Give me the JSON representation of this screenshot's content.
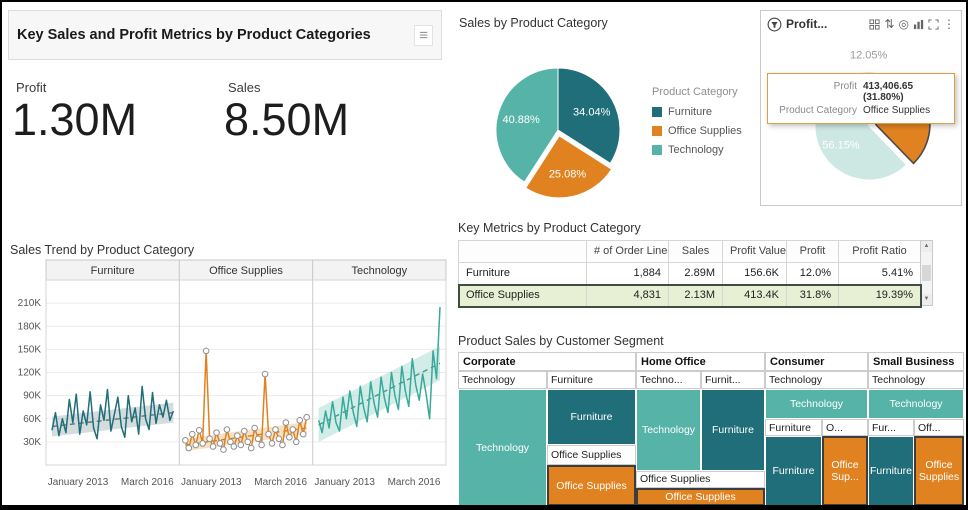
{
  "dashboard": {
    "title": "Key Sales and Profit Metrics by Product Categories"
  },
  "icons": {
    "menu_grip": "≡",
    "sort": "⇅",
    "target": "◎",
    "kebab": "⋮",
    "scroll_up": "▲",
    "scroll_down": "▼"
  },
  "kpis": {
    "profit_label": "Profit",
    "profit_value": "1.30M",
    "sales_label": "Sales",
    "sales_value": "8.50M"
  },
  "colors": {
    "furniture": "#1f6e79",
    "office_supplies": "#e0821f",
    "technology": "#56b3a7",
    "highlight_row_bg": "#e7f0d4",
    "highlight_border": "#3f4e43"
  },
  "sales_pie": {
    "title": "Sales by Product Category",
    "legend_title": "Product Category",
    "legend": [
      {
        "label": "Furniture",
        "color": "#1f6e79"
      },
      {
        "label": "Office Supplies",
        "color": "#e0821f"
      },
      {
        "label": "Technology",
        "color": "#56b3a7"
      }
    ],
    "start_deg": 0,
    "slices": [
      {
        "label": "Furniture",
        "pct": 34.04,
        "text": "34.04%",
        "color": "#1f6e79",
        "label_color": "#ffffff"
      },
      {
        "label": "Office Supplies",
        "pct": 25.08,
        "text": "25.08%",
        "color": "#e0821f",
        "label_color": "#ffffff",
        "explode": 6
      },
      {
        "label": "Technology",
        "pct": 40.88,
        "text": "40.88%",
        "color": "#56b3a7",
        "label_color": "#ffffff"
      }
    ]
  },
  "profit_card": {
    "title": "Profit...",
    "start_deg": -22,
    "slices": [
      {
        "label": "Furniture",
        "pct": 12.05,
        "text": "12.05%",
        "color": "#b8cfd3",
        "label_color": "#9b9b9b",
        "outside": true
      },
      {
        "label": "Office Supplies",
        "pct": 31.8,
        "text": "31.80%",
        "color": "#e0821f",
        "label_color": "#ffffff",
        "explode": 7,
        "stroke": "#4a4a4a"
      },
      {
        "label": "Technology",
        "pct": 56.15,
        "text": "56.15%",
        "color": "#cde7e2",
        "label_color": "#ffffff"
      }
    ],
    "tooltip": {
      "rows": [
        {
          "label": "Profit",
          "value": "413,406.65 (31.80%)"
        },
        {
          "label": "Product Category",
          "value": "Office Supplies"
        }
      ]
    }
  },
  "trend": {
    "title": "Sales Trend by Product Category",
    "y_ticks": [
      "210K",
      "180K",
      "150K",
      "120K",
      "90K",
      "60K",
      "30K"
    ],
    "x_labels": [
      "January 2013",
      "March 2016"
    ],
    "y_axis_max_k": 240,
    "panels": [
      {
        "name": "Furniture",
        "color": "#1f6e79",
        "band_color": "#93a8ac",
        "trend_color": "#46666d",
        "trend": [
          50,
          68
        ],
        "band": 13,
        "markers": false,
        "values": [
          45,
          68,
          38,
          60,
          42,
          85,
          55,
          92,
          40,
          70,
          52,
          95,
          48,
          34,
          78,
          58,
          98,
          44,
          66,
          88,
          50,
          36,
          90,
          56,
          74,
          40,
          102,
          60,
          46,
          94,
          54,
          78,
          62,
          84,
          58,
          70
        ]
      },
      {
        "name": "Office Supplies",
        "color": "#e0821f",
        "band_color": "#eab36e",
        "trend_color": "#c4720f",
        "trend": [
          26,
          48
        ],
        "band": 8,
        "markers": true,
        "values": [
          32,
          22,
          40,
          26,
          45,
          28,
          148,
          34,
          24,
          42,
          28,
          20,
          46,
          30,
          24,
          38,
          26,
          44,
          30,
          22,
          48,
          34,
          26,
          118,
          40,
          28,
          46,
          34,
          26,
          55,
          36,
          46,
          30,
          58,
          40,
          62
        ]
      },
      {
        "name": "Technology",
        "color": "#38a99a",
        "band_color": "#8fd0c6",
        "trend_color": "#2d8a7d",
        "trend": [
          52,
          132
        ],
        "band": 22,
        "markers": false,
        "values": [
          58,
          42,
          70,
          48,
          82,
          55,
          44,
          88,
          60,
          96,
          68,
          50,
          102,
          74,
          56,
          108,
          80,
          62,
          114,
          86,
          68,
          120,
          90,
          72,
          128,
          96,
          76,
          138,
          104,
          84,
          118,
          92,
          60,
          148,
          112,
          205
        ]
      }
    ]
  },
  "metrics_table": {
    "title": "Key Metrics by Product Category",
    "columns": [
      "",
      "# of Order Lines",
      "Sales",
      "Profit Value",
      "Profit",
      "Profit Ratio"
    ],
    "rows": [
      {
        "cells": [
          "Furniture",
          "1,884",
          "2.89M",
          "156.6K",
          "12.0%",
          "5.41%"
        ],
        "highlight": false
      },
      {
        "cells": [
          "Office Supplies",
          "4,831",
          "2.13M",
          "413.4K",
          "31.8%",
          "19.39%"
        ],
        "highlight": true
      }
    ]
  },
  "treemap": {
    "title": "Product Sales by Customer Segment",
    "segments": [
      {
        "name": "Corporate",
        "headers": [
          "Technology",
          "Furniture"
        ],
        "tech_block": "Technology",
        "furniture_block": "Furniture",
        "office_header": "Office Supplies",
        "office_block": "Office Supplies"
      },
      {
        "name": "Home Office",
        "headers": [
          "Techno...",
          "Furnit..."
        ],
        "tech_block": "Technology",
        "furniture_block": "Furniture",
        "office_header": "Office Supplies",
        "office_block": "Office Supplies"
      },
      {
        "name": "Consumer",
        "headers": [
          "Technology"
        ],
        "row2_headers": [
          "Furniture",
          "O..."
        ],
        "tech_block": "Technology",
        "furniture_block": "Furniture",
        "office_block": "Office Sup..."
      },
      {
        "name": "Small Business",
        "headers": [
          "Technology"
        ],
        "row2_headers": [
          "Fur...",
          "Off..."
        ],
        "tech_block": "Technology",
        "furniture_block": "Furniture",
        "office_block": "Office Supplies"
      }
    ]
  }
}
